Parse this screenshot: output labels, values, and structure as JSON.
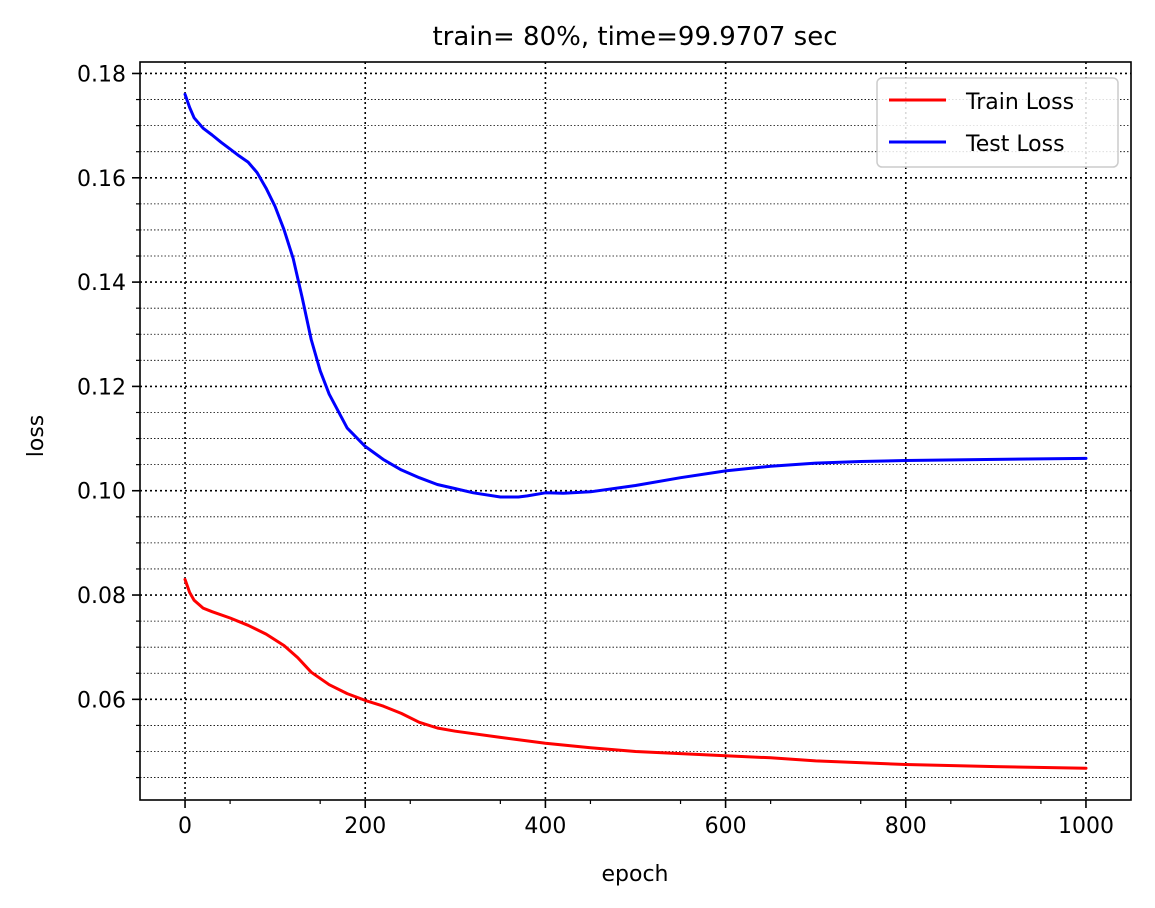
{
  "chart_data": {
    "type": "line",
    "title": "train= 80%, time=99.9707 sec",
    "xlabel": "epoch",
    "ylabel": "loss",
    "xlim": [
      -50,
      1050
    ],
    "ylim": [
      0.0407,
      0.1822
    ],
    "grid": "major dotted, minor dotted",
    "x_ticks": [
      0,
      200,
      400,
      600,
      800,
      1000
    ],
    "x_tick_labels": [
      "0",
      "200",
      "400",
      "600",
      "800",
      "1000"
    ],
    "y_ticks": [
      0.06,
      0.08,
      0.1,
      0.12,
      0.14,
      0.16,
      0.18
    ],
    "y_tick_labels": [
      "0.06",
      "0.08",
      "0.10",
      "0.12",
      "0.14",
      "0.16",
      "0.18"
    ],
    "legend_position": "upper right",
    "series": [
      {
        "name": "Train Loss",
        "color": "#ff0000",
        "x": [
          0,
          5,
          10,
          20,
          30,
          50,
          70,
          90,
          110,
          125,
          140,
          160,
          180,
          200,
          220,
          240,
          260,
          280,
          300,
          350,
          400,
          450,
          500,
          550,
          600,
          650,
          700,
          800,
          900,
          1000
        ],
        "y": [
          0.083,
          0.0805,
          0.079,
          0.0775,
          0.0768,
          0.0756,
          0.0742,
          0.0725,
          0.0703,
          0.068,
          0.0652,
          0.0628,
          0.0611,
          0.0598,
          0.0587,
          0.0573,
          0.0556,
          0.0545,
          0.0539,
          0.0527,
          0.0516,
          0.0507,
          0.05,
          0.0496,
          0.0492,
          0.0488,
          0.0482,
          0.0475,
          0.0471,
          0.0468
        ]
      },
      {
        "name": "Test Loss",
        "color": "#0000ff",
        "x": [
          0,
          5,
          10,
          20,
          30,
          40,
          50,
          60,
          70,
          80,
          90,
          100,
          110,
          120,
          130,
          140,
          150,
          160,
          180,
          200,
          220,
          240,
          260,
          280,
          300,
          320,
          350,
          370,
          380,
          400,
          420,
          450,
          500,
          550,
          600,
          650,
          700,
          750,
          800,
          900,
          1000
        ],
        "y": [
          0.176,
          0.1735,
          0.1715,
          0.1695,
          0.1682,
          0.1668,
          0.1655,
          0.1642,
          0.163,
          0.161,
          0.158,
          0.1545,
          0.15,
          0.1445,
          0.137,
          0.129,
          0.123,
          0.1185,
          0.112,
          0.1085,
          0.106,
          0.104,
          0.1025,
          0.1012,
          0.1004,
          0.0996,
          0.0988,
          0.0988,
          0.099,
          0.0996,
          0.0995,
          0.0998,
          0.101,
          0.1025,
          0.1038,
          0.1047,
          0.1053,
          0.1056,
          0.1058,
          0.106,
          0.1062
        ]
      }
    ]
  }
}
